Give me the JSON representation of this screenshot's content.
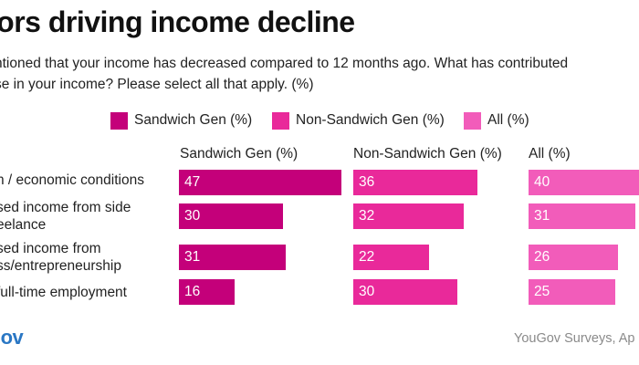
{
  "title": "tors driving income decline",
  "subtitle": {
    "line1": "ntioned that your income has decreased compared to 12 months ago. What has contributed",
    "line2": "se in your income? Please select all that apply. (%)"
  },
  "colors": {
    "sandwich": "#c4007a",
    "non_sandwich": "#e9299a",
    "all": "#f25cba"
  },
  "footer": {
    "logo": "Gov",
    "source": "YouGov Surveys, Ap"
  },
  "chart_data": {
    "type": "bar",
    "orientation": "horizontal",
    "layout": "small-multiples",
    "unit": "%",
    "categories": [
      [
        "n / economic conditions"
      ],
      [
        "sed income from side",
        "eelance"
      ],
      [
        "sed income from",
        "ss/entrepreneurship"
      ],
      [
        "full-time employment"
      ]
    ],
    "legend": [
      "Sandwich Gen (%)",
      "Non-Sandwich Gen (%)",
      "All (%)"
    ],
    "series": [
      {
        "name": "Sandwich Gen (%)",
        "values": [
          47,
          30,
          31,
          16
        ]
      },
      {
        "name": "Non-Sandwich Gen (%)",
        "values": [
          36,
          32,
          22,
          30
        ]
      },
      {
        "name": "All (%)",
        "values": [
          40,
          31,
          26,
          25
        ]
      }
    ]
  }
}
